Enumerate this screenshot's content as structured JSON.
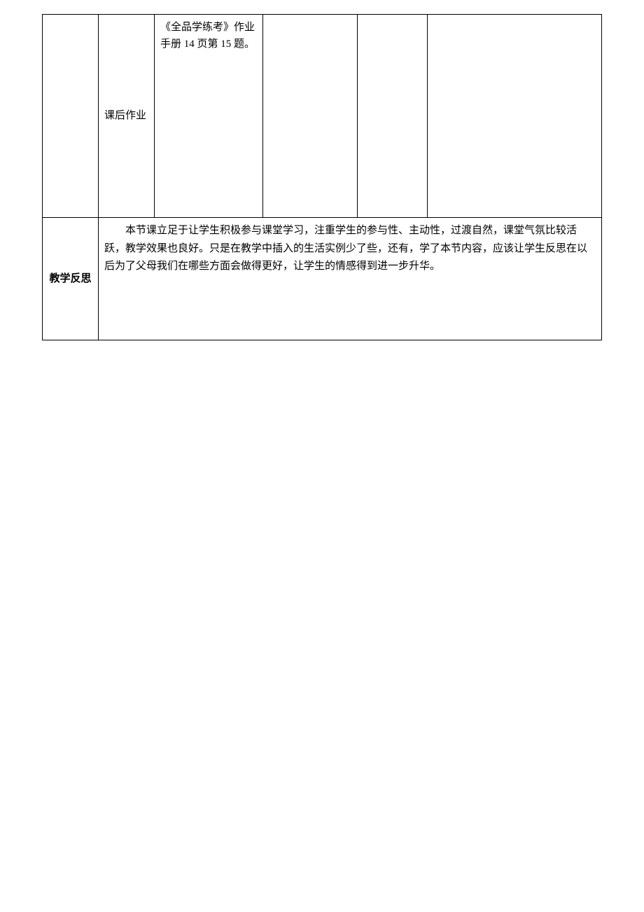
{
  "row1": {
    "col1": "",
    "col2": "课后作业",
    "col3": "《全品学练考》作业手册 14 页第 15 题。",
    "col4": "",
    "col5": "",
    "col6": ""
  },
  "row2": {
    "label": "教学反思",
    "content": "本节课立足于让学生积极参与课堂学习，注重学生的参与性、主动性，过渡自然，课堂气氛比较活跃，教学效果也良好。只是在教学中插入的生活实例少了些，还有，学了本节内容，应该让学生反思在以后为了父母我们在哪些方面会做得更好，让学生的情感得到进一步升华。"
  }
}
